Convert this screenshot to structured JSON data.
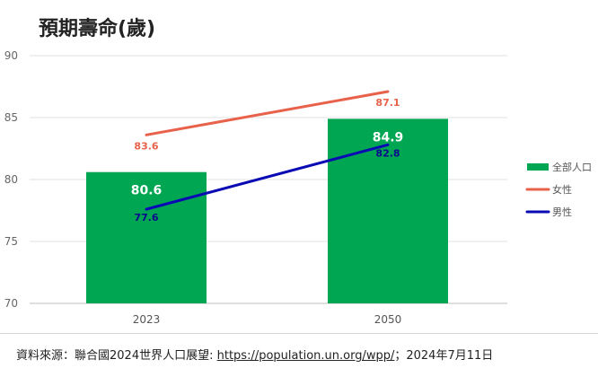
{
  "title": "預期壽命(歲)",
  "chart_data": {
    "type": "bar",
    "categories": [
      "2023",
      "2050"
    ],
    "ylim": [
      70,
      90
    ],
    "yticks": [
      70,
      75,
      80,
      85,
      90
    ],
    "grid": true,
    "legend_position": "right",
    "series": [
      {
        "name": "全部人口",
        "kind": "bar",
        "color": "#00a651",
        "label_color": "#ffffff",
        "values": [
          80.6,
          84.9
        ]
      },
      {
        "name": "女性",
        "kind": "line",
        "color": "#e8614a",
        "label_color": "#e8614a",
        "values": [
          83.6,
          87.1
        ]
      },
      {
        "name": "男性",
        "kind": "line",
        "color": "#0a0ab4",
        "label_color": "#0a0a8c",
        "values": [
          77.6,
          82.8
        ]
      }
    ]
  },
  "source": {
    "prefix": "資料來源：聯合國2024世界人口展望: ",
    "link": "https://population.un.org/wpp/",
    "suffix": "；2024年7月11日"
  }
}
